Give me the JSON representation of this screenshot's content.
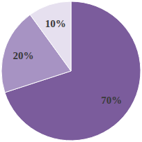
{
  "chart_data": {
    "type": "pie",
    "values": [
      70,
      20,
      10
    ],
    "value_labels": [
      "70%",
      "20%",
      "10%"
    ],
    "colors": [
      "#7b5c9c",
      "#a793c3",
      "#e6e0ef"
    ],
    "data_labels": true
  }
}
